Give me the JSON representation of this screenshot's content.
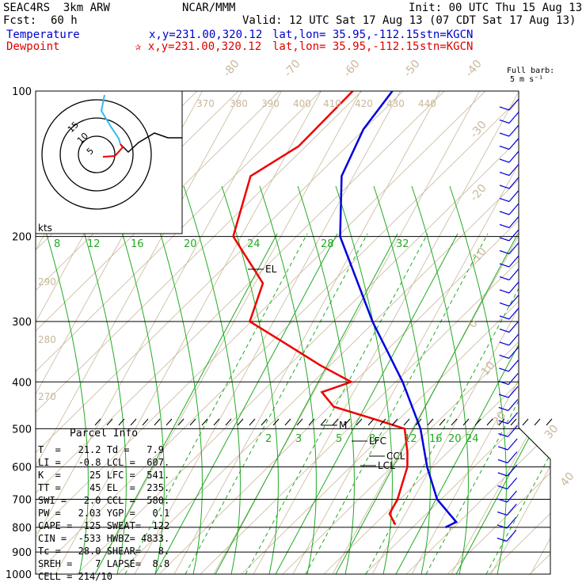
{
  "header": {
    "model": "SEAC4RS  3km ARW",
    "fcst_label": "Fcst:",
    "fcst_value": "60 h",
    "center": "NCAR/MMM",
    "init": "Init: 00 UTC Thu 15 Aug 13",
    "valid": "Valid: 12 UTC Sat 17 Aug 13 (07 CDT Sat 17 Aug 13)",
    "temp_label": "Temperature",
    "temp_xy": "x,y=231.00,320.12",
    "temp_latlon": "lat,lon= 35.95,-112.15",
    "temp_stn": "stn=KGCN",
    "dew_label": "Dewpoint",
    "dew_xy": "✰ x,y=231.00,320.12",
    "dew_latlon": "lat,lon= 35.95,-112.15",
    "dew_stn": "stn=KGCN",
    "barb_note1": "Full barb:",
    "barb_note2": "5 m s⁻¹"
  },
  "colors": {
    "temperature": "#0000dd",
    "dewpoint": "#ee0000",
    "isotherm": "#c8b89a",
    "mixing": "#22aa22",
    "hodo_line": "#000000",
    "hodo_alt": "#33bbee"
  },
  "chart_data": {
    "type": "line",
    "title": "",
    "ylabel": "",
    "pressure_levels": [
      100,
      200,
      300,
      400,
      500,
      600,
      700,
      800,
      900,
      1000
    ],
    "pressure_labels": [
      "100",
      "200",
      "300",
      "400",
      "500",
      "600",
      "700",
      "800",
      "900",
      "1000"
    ],
    "isotherm_labels": [
      "-80",
      "-70",
      "-60",
      "-50",
      "-40",
      "-30",
      "-20",
      "-10",
      "0",
      "10",
      "20",
      "30",
      "40"
    ],
    "theta_labels": [
      "370",
      "380",
      "390",
      "400",
      "410",
      "420",
      "430",
      "440",
      "290",
      "280",
      "270"
    ],
    "mixing_ratio_top": [
      "8",
      "12",
      "16",
      "20",
      "24",
      "28",
      "32"
    ],
    "mixing_ratio_low": [
      "2",
      "3",
      "5",
      "8",
      "12",
      "16",
      "20",
      "24"
    ],
    "annotations": [
      "EL",
      "LFC",
      "CCL",
      "LCL",
      "M"
    ],
    "hodograph_rings": [
      "5",
      "10",
      "15"
    ],
    "hodograph_unit": "kts",
    "temperature": [
      {
        "p": 100,
        "t": -62
      },
      {
        "p": 120,
        "t": -64
      },
      {
        "p": 150,
        "t": -63
      },
      {
        "p": 200,
        "t": -55
      },
      {
        "p": 250,
        "t": -44
      },
      {
        "p": 300,
        "t": -35
      },
      {
        "p": 400,
        "t": -19
      },
      {
        "p": 500,
        "t": -8
      },
      {
        "p": 600,
        "t": -1
      },
      {
        "p": 700,
        "t": 6
      },
      {
        "p": 780,
        "t": 14
      },
      {
        "p": 800,
        "t": 12
      }
    ],
    "dewpoint": [
      {
        "p": 100,
        "t": -72
      },
      {
        "p": 130,
        "t": -78
      },
      {
        "p": 150,
        "t": -86
      },
      {
        "p": 200,
        "t": -82
      },
      {
        "p": 250,
        "t": -68
      },
      {
        "p": 300,
        "t": -66
      },
      {
        "p": 330,
        "t": -55
      },
      {
        "p": 370,
        "t": -42
      },
      {
        "p": 400,
        "t": -32
      },
      {
        "p": 420,
        "t": -38
      },
      {
        "p": 450,
        "t": -33
      },
      {
        "p": 480,
        "t": -20
      },
      {
        "p": 500,
        "t": -12
      },
      {
        "p": 560,
        "t": -8
      },
      {
        "p": 600,
        "t": -6
      },
      {
        "p": 700,
        "t": -4
      },
      {
        "p": 750,
        "t": -4
      },
      {
        "p": 790,
        "t": -1
      }
    ]
  },
  "parcel_title": "Parcel Info",
  "parcel_rows": [
    "T  =   21.2 Td =   7.9",
    "LI =   -0.8 LCL =  607.",
    "K  =     25 LFC =  541.",
    "TT =     45 EL  =  235.",
    "SWI =   2.0 CCL =  580.",
    "PW =   2.03 YGP =   0.1",
    "CAPE =  125 SWEAT=  122",
    "CIN =  -533 HWBZ= 4833.",
    "Tc =   28.0 SHEAR=   8.",
    "SREH =    7 LAPSE=  8.8",
    "CELL = 214/10"
  ]
}
